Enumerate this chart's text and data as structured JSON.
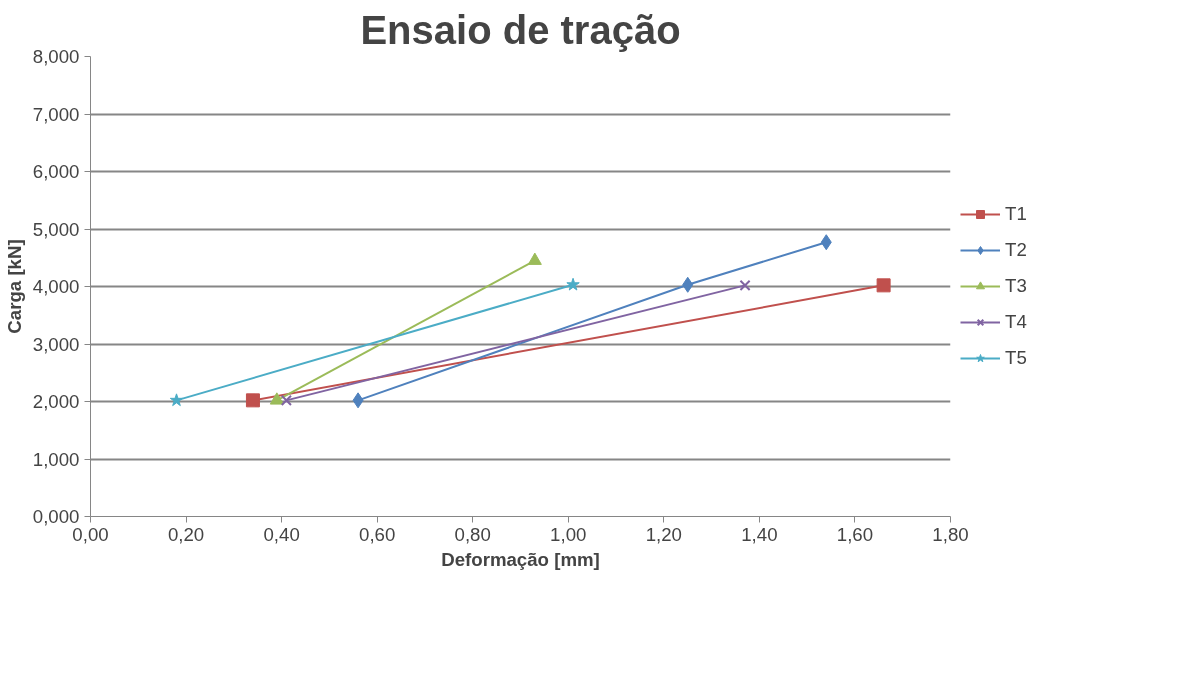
{
  "chart_data": {
    "type": "line",
    "title": "Ensaio de tração",
    "xlabel": "Deformação [mm]",
    "ylabel": "Carga [kN]",
    "xlim": [
      0,
      1.8
    ],
    "ylim": [
      0,
      8
    ],
    "xticks": [
      {
        "value": 0,
        "label": "0,00"
      },
      {
        "value": 0.2,
        "label": "0,20"
      },
      {
        "value": 0.4,
        "label": "0,40"
      },
      {
        "value": 0.6,
        "label": "0,60"
      },
      {
        "value": 0.8,
        "label": "0,80"
      },
      {
        "value": 1.0,
        "label": "1,00"
      },
      {
        "value": 1.2,
        "label": "1,20"
      },
      {
        "value": 1.4,
        "label": "1,40"
      },
      {
        "value": 1.6,
        "label": "1,60"
      },
      {
        "value": 1.8,
        "label": "1,80"
      }
    ],
    "yticks": [
      {
        "value": 0,
        "label": "0,000"
      },
      {
        "value": 1,
        "label": "1,000"
      },
      {
        "value": 2,
        "label": "2,000"
      },
      {
        "value": 3,
        "label": "3,000"
      },
      {
        "value": 4,
        "label": "4,000"
      },
      {
        "value": 5,
        "label": "5,000"
      },
      {
        "value": 6,
        "label": "6,000"
      },
      {
        "value": 7,
        "label": "7,000"
      },
      {
        "value": 8,
        "label": "8,000"
      }
    ],
    "grid": "y",
    "legend": "right",
    "line_style": "solid",
    "series": [
      {
        "name": "T1",
        "color": "#c0504d",
        "marker": "square",
        "x": [
          0.34,
          1.66
        ],
        "values": [
          2.02,
          4.02
        ]
      },
      {
        "name": "T2",
        "color": "#4f81bd",
        "marker": "diamond",
        "x": [
          0.56,
          1.25,
          1.54
        ],
        "values": [
          2.02,
          4.03,
          4.77
        ]
      },
      {
        "name": "T3",
        "color": "#9bbb59",
        "marker": "triangle",
        "x": [
          0.39,
          0.93
        ],
        "values": [
          2.02,
          4.45
        ]
      },
      {
        "name": "T4",
        "color": "#8064a2",
        "marker": "cross",
        "x": [
          0.41,
          1.37
        ],
        "values": [
          2.02,
          4.02
        ]
      },
      {
        "name": "T5",
        "color": "#4bacc6",
        "marker": "star",
        "x": [
          0.18,
          1.01
        ],
        "values": [
          2.02,
          4.03
        ]
      }
    ]
  }
}
